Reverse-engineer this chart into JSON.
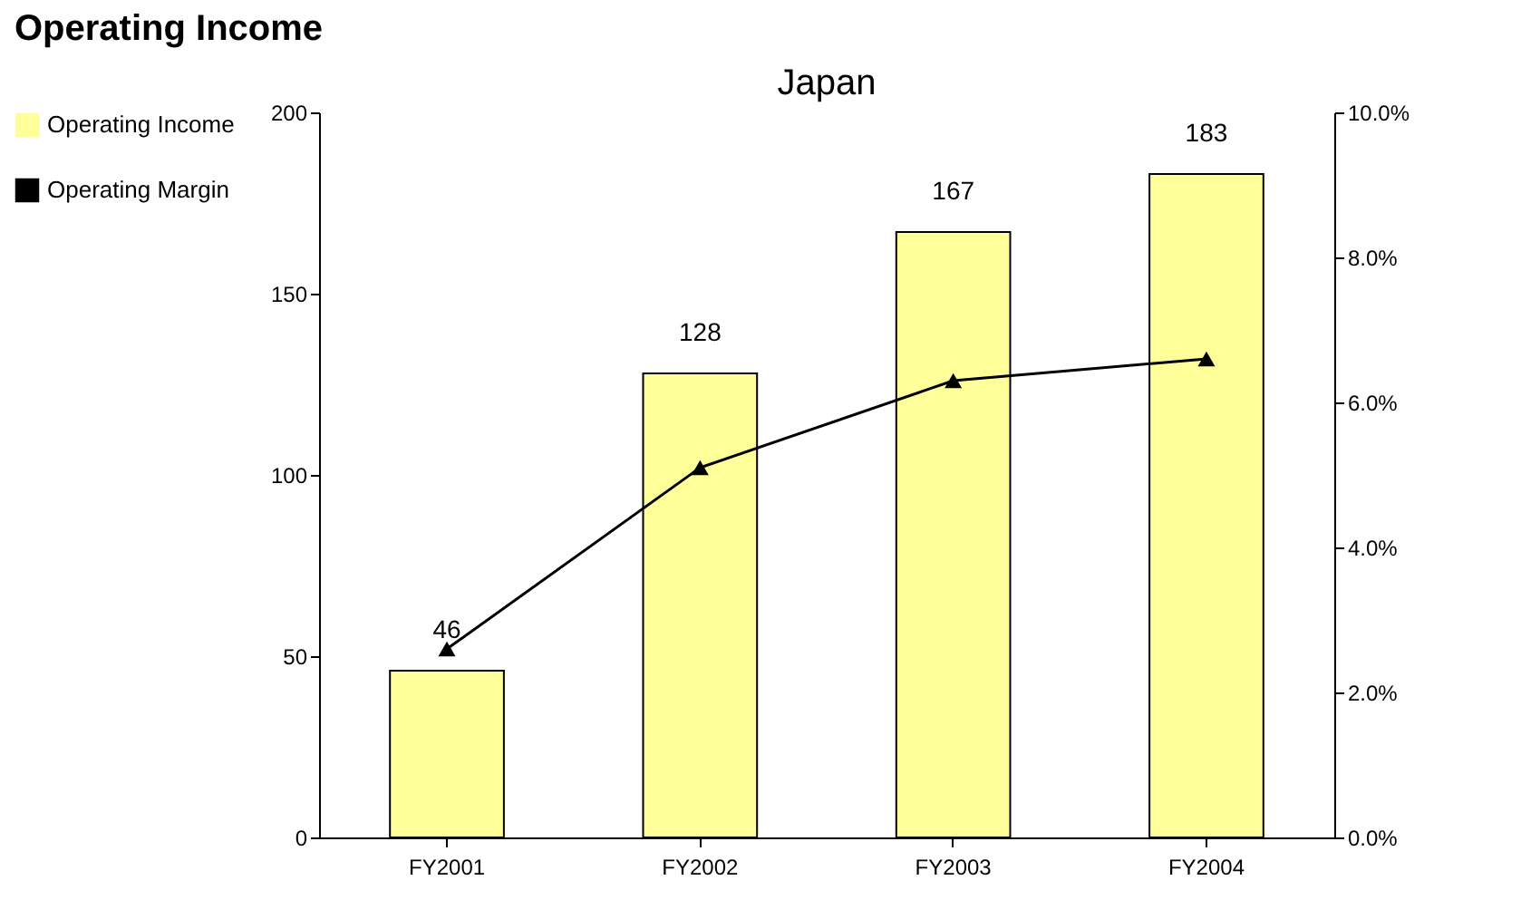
{
  "chart_data": {
    "type": "bar",
    "title": "Operating Income",
    "subtitle": "Japan",
    "categories": [
      "FY2001",
      "FY2002",
      "FY2003",
      "FY2004"
    ],
    "series": [
      {
        "name": "Operating Income",
        "color": "#ffff99",
        "values": [
          46,
          128,
          167,
          183
        ],
        "value_labels": [
          "46",
          "128",
          "167",
          "183"
        ]
      },
      {
        "name": "Operating Margin",
        "type": "line",
        "axis": "y2",
        "color": "#000000",
        "values": [
          2.6,
          5.1,
          6.3,
          6.6
        ]
      }
    ],
    "ylim": [
      0,
      200
    ],
    "yticks": [
      0,
      50,
      100,
      150,
      200
    ],
    "y2lim": [
      0,
      10
    ],
    "y2ticks": [
      {
        "value": 0,
        "label": "0.0%"
      },
      {
        "value": 2,
        "label": "2.0%"
      },
      {
        "value": 4,
        "label": "4.0%"
      },
      {
        "value": 6,
        "label": "6.0%"
      },
      {
        "value": 8,
        "label": "8.0%"
      },
      {
        "value": 10,
        "label": "10.0%"
      }
    ],
    "grid": false,
    "legend": "left",
    "marker": "triangle",
    "line_style": "solid"
  }
}
